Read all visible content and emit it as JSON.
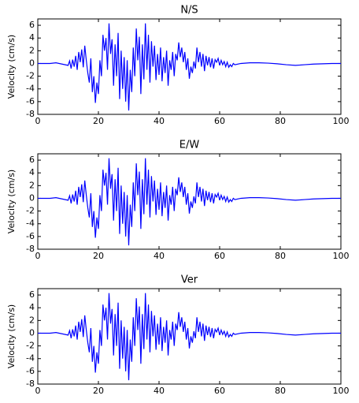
{
  "chart_data": [
    {
      "type": "line",
      "title": "N/S",
      "ylabel": "Velocity (cm/s)",
      "color": "#0000ff",
      "xlim": [
        0,
        100
      ],
      "xticks": [
        0,
        20,
        40,
        60,
        80,
        100
      ],
      "ylim": [
        -8,
        7
      ],
      "yticks": [
        -8,
        -6,
        -4,
        -2,
        0,
        2,
        4,
        6
      ],
      "x": [
        0,
        2,
        4,
        6,
        8,
        10,
        10.5,
        11,
        11.5,
        12,
        12.5,
        13,
        13.5,
        14,
        14.5,
        15,
        15.5,
        16,
        16.5,
        17,
        17.5,
        18,
        18.5,
        19,
        19.5,
        20,
        20.5,
        21,
        21.5,
        22,
        22.5,
        23,
        23.5,
        24,
        24.5,
        25,
        25.5,
        26,
        26.5,
        27,
        27.5,
        28,
        28.5,
        29,
        29.5,
        30,
        30.5,
        31,
        31.5,
        32,
        32.5,
        33,
        33.5,
        34,
        34.5,
        35,
        35.5,
        36,
        36.5,
        37,
        37.5,
        38,
        38.5,
        39,
        39.5,
        40,
        40.5,
        41,
        41.5,
        42,
        42.5,
        43,
        43.5,
        44,
        44.5,
        45,
        45.5,
        46,
        46.5,
        47,
        47.5,
        48,
        48.5,
        49,
        49.5,
        50,
        50.5,
        51,
        51.5,
        52,
        52.5,
        53,
        53.5,
        54,
        54.5,
        55,
        55.5,
        56,
        56.5,
        57,
        57.5,
        58,
        58.5,
        59,
        59.5,
        60,
        60.5,
        61,
        61.5,
        62,
        62.5,
        63,
        63.5,
        64,
        64.5,
        65,
        67,
        70,
        73,
        76,
        79,
        82,
        85,
        88,
        91,
        94,
        97,
        100
      ],
      "values": [
        0,
        0,
        0,
        0.1,
        -0.1,
        -0.3,
        0.4,
        -0.8,
        0.6,
        -0.5,
        1.2,
        -1.0,
        1.8,
        0.2,
        2.2,
        -0.6,
        2.8,
        0.5,
        -1.5,
        -3.0,
        0.8,
        -4.5,
        -2.0,
        -6.2,
        -3.0,
        -4.8,
        0.5,
        -2.0,
        4.5,
        2.0,
        4.0,
        -1.0,
        6.3,
        1.5,
        3.8,
        -3.5,
        3.0,
        -2.0,
        4.8,
        -5.6,
        2.0,
        -4.0,
        1.0,
        -6.0,
        0.5,
        -7.4,
        -1.0,
        -4.5,
        2.5,
        -2.0,
        5.5,
        0.5,
        4.2,
        -4.8,
        3.0,
        -2.5,
        6.3,
        -1.0,
        4.5,
        -3.0,
        3.5,
        -0.5,
        2.8,
        -2.6,
        1.5,
        -1.8,
        2.5,
        -2.8,
        1.0,
        -1.5,
        2.0,
        -3.5,
        0.5,
        -1.0,
        1.8,
        -2.0,
        1.5,
        0.5,
        3.3,
        1.0,
        2.5,
        0.2,
        1.8,
        -1.0,
        0.8,
        -2.4,
        -0.5,
        -1.5,
        0.3,
        -0.8,
        2.5,
        0.2,
        1.8,
        -0.5,
        1.5,
        -1.2,
        1.2,
        -0.3,
        1.0,
        -0.6,
        0.8,
        -0.8,
        0.6,
        0.2,
        0.8,
        -0.3,
        0.5,
        -0.2,
        0.3,
        -0.5,
        0.2,
        -0.6,
        -0.2,
        -0.5,
        0,
        -0.2,
        0,
        0.1,
        0.1,
        0.05,
        -0.05,
        -0.2,
        -0.3,
        -0.2,
        -0.1,
        -0.05,
        0,
        0
      ]
    },
    {
      "type": "line",
      "title": "E/W",
      "ylabel": "Velocity (cm/s)",
      "color": "#0000ff",
      "xlim": [
        0,
        100
      ],
      "xticks": [
        0,
        20,
        40,
        60,
        80,
        100
      ],
      "ylim": [
        -8,
        7
      ],
      "yticks": [
        -8,
        -6,
        -4,
        -2,
        0,
        2,
        4,
        6
      ],
      "x": [
        0,
        2,
        4,
        6,
        8,
        10,
        10.5,
        11,
        11.5,
        12,
        12.5,
        13,
        13.5,
        14,
        14.5,
        15,
        15.5,
        16,
        16.5,
        17,
        17.5,
        18,
        18.5,
        19,
        19.5,
        20,
        20.5,
        21,
        21.5,
        22,
        22.5,
        23,
        23.5,
        24,
        24.5,
        25,
        25.5,
        26,
        26.5,
        27,
        27.5,
        28,
        28.5,
        29,
        29.5,
        30,
        30.5,
        31,
        31.5,
        32,
        32.5,
        33,
        33.5,
        34,
        34.5,
        35,
        35.5,
        36,
        36.5,
        37,
        37.5,
        38,
        38.5,
        39,
        39.5,
        40,
        40.5,
        41,
        41.5,
        42,
        42.5,
        43,
        43.5,
        44,
        44.5,
        45,
        45.5,
        46,
        46.5,
        47,
        47.5,
        48,
        48.5,
        49,
        49.5,
        50,
        50.5,
        51,
        51.5,
        52,
        52.5,
        53,
        53.5,
        54,
        54.5,
        55,
        55.5,
        56,
        56.5,
        57,
        57.5,
        58,
        58.5,
        59,
        59.5,
        60,
        60.5,
        61,
        61.5,
        62,
        62.5,
        63,
        63.5,
        64,
        64.5,
        65,
        67,
        70,
        73,
        76,
        79,
        82,
        85,
        88,
        91,
        94,
        97,
        100
      ],
      "values": [
        0,
        0,
        0,
        0.1,
        -0.1,
        -0.3,
        0.4,
        -0.8,
        0.6,
        -0.5,
        1.2,
        -1.0,
        1.8,
        0.2,
        2.2,
        -0.6,
        2.8,
        0.5,
        -1.5,
        -3.0,
        0.8,
        -4.5,
        -2.0,
        -6.2,
        -3.0,
        -4.8,
        0.5,
        -2.0,
        4.5,
        2.0,
        4.0,
        -1.0,
        6.3,
        1.5,
        3.8,
        -3.5,
        3.0,
        -2.0,
        4.8,
        -5.6,
        2.0,
        -4.0,
        1.0,
        -6.0,
        0.5,
        -7.4,
        -1.0,
        -4.5,
        2.5,
        -2.0,
        5.5,
        0.5,
        4.2,
        -4.8,
        3.0,
        -2.5,
        6.3,
        -1.0,
        4.5,
        -3.0,
        3.5,
        -0.5,
        2.8,
        -2.6,
        1.5,
        -1.8,
        2.5,
        -2.8,
        1.0,
        -1.5,
        2.0,
        -3.5,
        0.5,
        -1.0,
        1.8,
        -2.0,
        1.5,
        0.5,
        3.3,
        1.0,
        2.5,
        0.2,
        1.8,
        -1.0,
        0.8,
        -2.4,
        -0.5,
        -1.5,
        0.3,
        -0.8,
        2.5,
        0.2,
        1.8,
        -0.5,
        1.5,
        -1.2,
        1.2,
        -0.3,
        1.0,
        -0.6,
        0.8,
        -0.8,
        0.6,
        0.2,
        0.8,
        -0.3,
        0.5,
        -0.2,
        0.3,
        -0.5,
        0.2,
        -0.6,
        -0.2,
        -0.5,
        0,
        -0.2,
        0,
        0.1,
        0.1,
        0.05,
        -0.05,
        -0.2,
        -0.3,
        -0.2,
        -0.1,
        -0.05,
        0,
        0
      ]
    },
    {
      "type": "line",
      "title": "Ver",
      "ylabel": "Velocity (cm/s)",
      "color": "#0000ff",
      "xlim": [
        0,
        100
      ],
      "xticks": [
        0,
        20,
        40,
        60,
        80,
        100
      ],
      "ylim": [
        -8,
        7
      ],
      "yticks": [
        -8,
        -6,
        -4,
        -2,
        0,
        2,
        4,
        6
      ],
      "x": [
        0,
        2,
        4,
        6,
        8,
        10,
        10.5,
        11,
        11.5,
        12,
        12.5,
        13,
        13.5,
        14,
        14.5,
        15,
        15.5,
        16,
        16.5,
        17,
        17.5,
        18,
        18.5,
        19,
        19.5,
        20,
        20.5,
        21,
        21.5,
        22,
        22.5,
        23,
        23.5,
        24,
        24.5,
        25,
        25.5,
        26,
        26.5,
        27,
        27.5,
        28,
        28.5,
        29,
        29.5,
        30,
        30.5,
        31,
        31.5,
        32,
        32.5,
        33,
        33.5,
        34,
        34.5,
        35,
        35.5,
        36,
        36.5,
        37,
        37.5,
        38,
        38.5,
        39,
        39.5,
        40,
        40.5,
        41,
        41.5,
        42,
        42.5,
        43,
        43.5,
        44,
        44.5,
        45,
        45.5,
        46,
        46.5,
        47,
        47.5,
        48,
        48.5,
        49,
        49.5,
        50,
        50.5,
        51,
        51.5,
        52,
        52.5,
        53,
        53.5,
        54,
        54.5,
        55,
        55.5,
        56,
        56.5,
        57,
        57.5,
        58,
        58.5,
        59,
        59.5,
        60,
        60.5,
        61,
        61.5,
        62,
        62.5,
        63,
        63.5,
        64,
        64.5,
        65,
        67,
        70,
        73,
        76,
        79,
        82,
        85,
        88,
        91,
        94,
        97,
        100
      ],
      "values": [
        0,
        0,
        0,
        0.1,
        -0.1,
        -0.3,
        0.4,
        -0.8,
        0.6,
        -0.5,
        1.2,
        -1.0,
        1.8,
        0.2,
        2.2,
        -0.6,
        2.8,
        0.5,
        -1.5,
        -3.0,
        0.8,
        -4.5,
        -2.0,
        -6.2,
        -3.0,
        -4.8,
        0.5,
        -2.0,
        4.5,
        2.0,
        4.0,
        -1.0,
        6.3,
        1.5,
        3.8,
        -3.5,
        3.0,
        -2.0,
        4.8,
        -5.6,
        2.0,
        -4.0,
        1.0,
        -6.0,
        0.5,
        -7.4,
        -1.0,
        -4.5,
        2.5,
        -2.0,
        5.5,
        0.5,
        4.2,
        -4.8,
        3.0,
        -2.5,
        6.3,
        -1.0,
        4.5,
        -3.0,
        3.5,
        -0.5,
        2.8,
        -2.6,
        1.5,
        -1.8,
        2.5,
        -2.8,
        1.0,
        -1.5,
        2.0,
        -3.5,
        0.5,
        -1.0,
        1.8,
        -2.0,
        1.5,
        0.5,
        3.3,
        1.0,
        2.5,
        0.2,
        1.8,
        -1.0,
        0.8,
        -2.4,
        -0.5,
        -1.5,
        0.3,
        -0.8,
        2.5,
        0.2,
        1.8,
        -0.5,
        1.5,
        -1.2,
        1.2,
        -0.3,
        1.0,
        -0.6,
        0.8,
        -0.8,
        0.6,
        0.2,
        0.8,
        -0.3,
        0.5,
        -0.2,
        0.3,
        -0.5,
        0.2,
        -0.6,
        -0.2,
        -0.5,
        0,
        -0.2,
        0,
        0.1,
        0.1,
        0.05,
        -0.05,
        -0.2,
        -0.3,
        -0.2,
        -0.1,
        -0.05,
        0,
        0
      ]
    }
  ]
}
